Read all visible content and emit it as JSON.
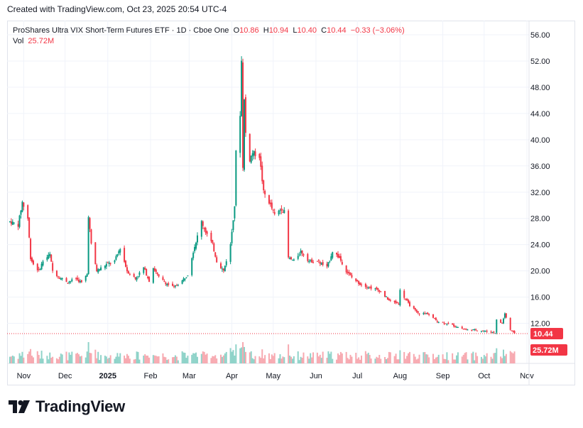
{
  "header": {
    "created_text": "Created with TradingView.com, Oct 23, 2025 20:54 UTC-4"
  },
  "legend": {
    "symbol_text": "ProShares Ultra VIX Short-Term Futures ETF · 1D · Cboe One",
    "o_label": "O",
    "o_value": "10.86",
    "h_label": "H",
    "h_value": "10.94",
    "l_label": "L",
    "l_value": "10.40",
    "c_label": "C",
    "c_value": "10.44",
    "change_text": "−0.33 (−3.06%)",
    "vol_label": "Vol",
    "vol_value": "25.72M"
  },
  "footer": {
    "brand": "TradingView"
  },
  "colors": {
    "up": "#089981",
    "down": "#f23645",
    "up_vol": "#8fd3c9",
    "down_vol": "#f7a9b0",
    "grid": "#f0f3fa",
    "price_line": "#f23645"
  },
  "chart_data": {
    "type": "candlestick",
    "y_axis_side": "right",
    "ylim": [
      8,
      58
    ],
    "y_ticks": [
      "12.00",
      "16.00",
      "20.00",
      "24.00",
      "28.00",
      "32.00",
      "36.00",
      "40.00",
      "44.00",
      "48.00",
      "52.00",
      "56.00"
    ],
    "x_ticks": [
      {
        "label": "Nov",
        "date": "2024-11-01",
        "bold": false
      },
      {
        "label": "Dec",
        "date": "2024-12-01",
        "bold": false
      },
      {
        "label": "2025",
        "date": "2025-01-01",
        "bold": true
      },
      {
        "label": "Feb",
        "date": "2025-02-01",
        "bold": false
      },
      {
        "label": "Mar",
        "date": "2025-03-01",
        "bold": false
      },
      {
        "label": "Apr",
        "date": "2025-04-01",
        "bold": false
      },
      {
        "label": "May",
        "date": "2025-05-01",
        "bold": false
      },
      {
        "label": "Jun",
        "date": "2025-06-01",
        "bold": false
      },
      {
        "label": "Jul",
        "date": "2025-07-01",
        "bold": false
      },
      {
        "label": "Aug",
        "date": "2025-08-01",
        "bold": false
      },
      {
        "label": "Sep",
        "date": "2025-09-01",
        "bold": false
      },
      {
        "label": "Oct",
        "date": "2025-10-01",
        "bold": false
      },
      {
        "label": "Nov",
        "date": "2025-11-01",
        "bold": false
      }
    ],
    "last_price": 10.44,
    "last_price_label": "10.44",
    "last_volume_label": "25.72M",
    "series_close": [
      {
        "date": "2024-10-22",
        "close": 27.5
      },
      {
        "date": "2024-10-28",
        "close": 27.0
      },
      {
        "date": "2024-10-31",
        "close": 30.5
      },
      {
        "date": "2024-11-04",
        "close": 28.0
      },
      {
        "date": "2024-11-06",
        "close": 22.0
      },
      {
        "date": "2024-11-08",
        "close": 21.0
      },
      {
        "date": "2024-11-12",
        "close": 20.0
      },
      {
        "date": "2024-11-15",
        "close": 21.5
      },
      {
        "date": "2024-11-20",
        "close": 22.5
      },
      {
        "date": "2024-11-22",
        "close": 20.0
      },
      {
        "date": "2024-11-27",
        "close": 19.0
      },
      {
        "date": "2024-12-03",
        "close": 18.3
      },
      {
        "date": "2024-12-09",
        "close": 18.8
      },
      {
        "date": "2024-12-13",
        "close": 18.2
      },
      {
        "date": "2024-12-17",
        "close": 19.5
      },
      {
        "date": "2024-12-18",
        "close": 28.5
      },
      {
        "date": "2024-12-20",
        "close": 24.0
      },
      {
        "date": "2024-12-24",
        "close": 20.0
      },
      {
        "date": "2024-12-31",
        "close": 21.0
      },
      {
        "date": "2025-01-06",
        "close": 21.5
      },
      {
        "date": "2025-01-10",
        "close": 23.5
      },
      {
        "date": "2025-01-15",
        "close": 20.0
      },
      {
        "date": "2025-01-21",
        "close": 18.8
      },
      {
        "date": "2025-01-27",
        "close": 20.5
      },
      {
        "date": "2025-01-31",
        "close": 18.5
      },
      {
        "date": "2025-02-03",
        "close": 20.5
      },
      {
        "date": "2025-02-07",
        "close": 19.0
      },
      {
        "date": "2025-02-13",
        "close": 18.0
      },
      {
        "date": "2025-02-18",
        "close": 17.5
      },
      {
        "date": "2025-02-24",
        "close": 18.5
      },
      {
        "date": "2025-02-28",
        "close": 19.5
      },
      {
        "date": "2025-03-04",
        "close": 23.0
      },
      {
        "date": "2025-03-10",
        "close": 27.5
      },
      {
        "date": "2025-03-13",
        "close": 26.0
      },
      {
        "date": "2025-03-18",
        "close": 24.0
      },
      {
        "date": "2025-03-21",
        "close": 21.5
      },
      {
        "date": "2025-03-26",
        "close": 20.0
      },
      {
        "date": "2025-03-31",
        "close": 24.0
      },
      {
        "date": "2025-04-03",
        "close": 30.0
      },
      {
        "date": "2025-04-04",
        "close": 38.0
      },
      {
        "date": "2025-04-07",
        "close": 44.0
      },
      {
        "date": "2025-04-08",
        "close": 52.0
      },
      {
        "date": "2025-04-09",
        "close": 36.0
      },
      {
        "date": "2025-04-10",
        "close": 46.0
      },
      {
        "date": "2025-04-11",
        "close": 41.0
      },
      {
        "date": "2025-04-14",
        "close": 37.0
      },
      {
        "date": "2025-04-16",
        "close": 38.0
      },
      {
        "date": "2025-04-21",
        "close": 37.5
      },
      {
        "date": "2025-04-24",
        "close": 32.0
      },
      {
        "date": "2025-04-28",
        "close": 30.5
      },
      {
        "date": "2025-05-02",
        "close": 28.5
      },
      {
        "date": "2025-05-07",
        "close": 29.5
      },
      {
        "date": "2025-05-09",
        "close": 29.0
      },
      {
        "date": "2025-05-12",
        "close": 22.0
      },
      {
        "date": "2025-05-16",
        "close": 21.5
      },
      {
        "date": "2025-05-21",
        "close": 23.0
      },
      {
        "date": "2025-05-27",
        "close": 21.5
      },
      {
        "date": "2025-06-02",
        "close": 21.5
      },
      {
        "date": "2025-06-09",
        "close": 20.5
      },
      {
        "date": "2025-06-13",
        "close": 23.0
      },
      {
        "date": "2025-06-18",
        "close": 22.0
      },
      {
        "date": "2025-06-23",
        "close": 20.0
      },
      {
        "date": "2025-06-27",
        "close": 19.0
      },
      {
        "date": "2025-07-03",
        "close": 18.0
      },
      {
        "date": "2025-07-10",
        "close": 17.5
      },
      {
        "date": "2025-07-17",
        "close": 17.0
      },
      {
        "date": "2025-07-24",
        "close": 15.5
      },
      {
        "date": "2025-07-31",
        "close": 15.0
      },
      {
        "date": "2025-08-01",
        "close": 17.0
      },
      {
        "date": "2025-08-07",
        "close": 15.0
      },
      {
        "date": "2025-08-14",
        "close": 13.5
      },
      {
        "date": "2025-08-21",
        "close": 13.5
      },
      {
        "date": "2025-08-28",
        "close": 12.3
      },
      {
        "date": "2025-09-04",
        "close": 12.0
      },
      {
        "date": "2025-09-11",
        "close": 11.5
      },
      {
        "date": "2025-09-18",
        "close": 11.0
      },
      {
        "date": "2025-09-25",
        "close": 11.0
      },
      {
        "date": "2025-10-02",
        "close": 10.8
      },
      {
        "date": "2025-10-09",
        "close": 10.6
      },
      {
        "date": "2025-10-10",
        "close": 12.5
      },
      {
        "date": "2025-10-14",
        "close": 12.0
      },
      {
        "date": "2025-10-16",
        "close": 13.5
      },
      {
        "date": "2025-10-20",
        "close": 11.0
      },
      {
        "date": "2025-10-23",
        "close": 10.44
      }
    ]
  }
}
